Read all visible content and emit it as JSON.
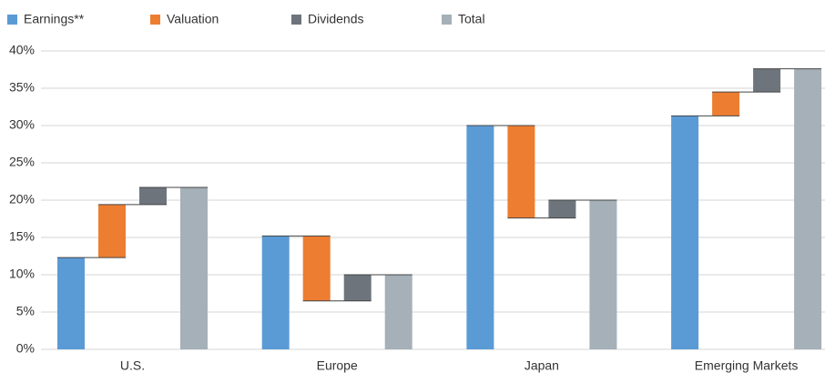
{
  "chart_data": {
    "type": "waterfall",
    "categories": [
      "U.S.",
      "Europe",
      "Japan",
      "Emerging Markets"
    ],
    "series": [
      {
        "name": "Earnings**",
        "color": "#5b9bd5",
        "values": [
          12.3,
          15.2,
          30.0,
          31.3
        ]
      },
      {
        "name": "Valuation",
        "color": "#ed7d31",
        "values": [
          7.1,
          -8.7,
          -12.4,
          3.2
        ]
      },
      {
        "name": "Dividends",
        "color": "#6d747c",
        "values": [
          2.3,
          3.5,
          2.4,
          3.1
        ]
      },
      {
        "name": "Total",
        "color": "#a5b0b8",
        "values": [
          21.7,
          10.0,
          20.0,
          37.6
        ]
      }
    ],
    "ylim": [
      0,
      40
    ],
    "yticks": [
      {
        "value": 0,
        "label": "0%"
      },
      {
        "value": 5,
        "label": "5%"
      },
      {
        "value": 10,
        "label": "10%"
      },
      {
        "value": 15,
        "label": "15%"
      },
      {
        "value": 20,
        "label": "20%"
      },
      {
        "value": 25,
        "label": "25%"
      },
      {
        "value": 30,
        "label": "30%"
      },
      {
        "value": 35,
        "label": "35%"
      },
      {
        "value": 40,
        "label": "40%"
      }
    ],
    "grid": true,
    "legend": "top"
  }
}
